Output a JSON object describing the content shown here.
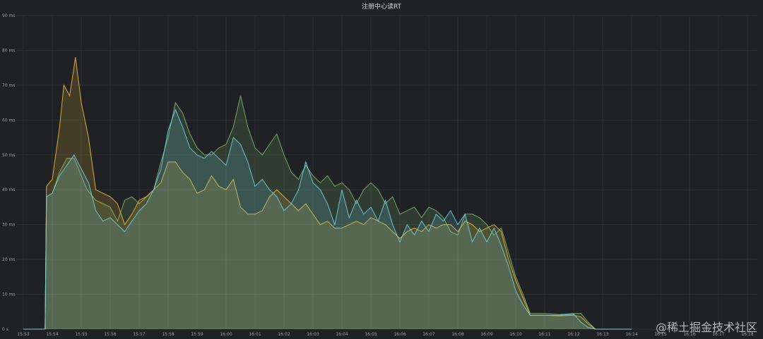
{
  "chart_data": {
    "type": "area",
    "title": "注册中心读RT",
    "xlabel": "",
    "ylabel": "",
    "ylim": [
      0,
      90
    ],
    "yticks": [
      "0 s",
      "10 ms",
      "20 ms",
      "30 ms",
      "40 ms",
      "50 ms",
      "60 ms",
      "70 ms",
      "80 ms",
      "90 ms"
    ],
    "xticks": [
      "15:53",
      "15:54",
      "15:55",
      "15:56",
      "15:57",
      "15:58",
      "15:59",
      "16:00",
      "16:01",
      "16:02",
      "16:03",
      "16:04",
      "16:05",
      "16:06",
      "16:07",
      "16:08",
      "16:09",
      "16:10",
      "16:11",
      "16:12",
      "16:13",
      "16:14",
      "16:15",
      "16:16",
      "16:17",
      "16:18"
    ],
    "grid": true,
    "legend": "none",
    "series": [
      {
        "color": "#7eb26d",
        "points": [
          [
            0,
            0
          ],
          [
            0.75,
            0
          ],
          [
            0.8,
            38
          ],
          [
            1,
            39
          ],
          [
            1.25,
            45
          ],
          [
            1.5,
            49
          ],
          [
            1.75,
            49
          ],
          [
            2,
            44
          ],
          [
            2.2,
            40
          ],
          [
            2.5,
            37
          ],
          [
            2.75,
            36
          ],
          [
            3,
            35
          ],
          [
            3.25,
            31
          ],
          [
            3.5,
            37
          ],
          [
            3.75,
            38
          ],
          [
            4,
            36
          ],
          [
            4.25,
            38
          ],
          [
            4.5,
            40
          ],
          [
            4.75,
            48
          ],
          [
            5,
            55
          ],
          [
            5.25,
            65
          ],
          [
            5.5,
            62
          ],
          [
            5.75,
            56
          ],
          [
            6,
            52
          ],
          [
            6.25,
            50
          ],
          [
            6.5,
            50
          ],
          [
            6.75,
            52
          ],
          [
            7,
            53
          ],
          [
            7.25,
            58
          ],
          [
            7.5,
            67
          ],
          [
            7.75,
            58
          ],
          [
            8,
            52
          ],
          [
            8.25,
            50
          ],
          [
            8.5,
            53
          ],
          [
            8.75,
            56
          ],
          [
            9,
            50
          ],
          [
            9.25,
            45
          ],
          [
            9.5,
            43
          ],
          [
            9.75,
            47
          ],
          [
            10,
            44
          ],
          [
            10.25,
            42
          ],
          [
            10.5,
            44
          ],
          [
            10.75,
            41
          ],
          [
            11,
            42
          ],
          [
            11.25,
            40
          ],
          [
            11.5,
            36
          ],
          [
            11.75,
            40
          ],
          [
            12,
            42
          ],
          [
            12.25,
            40
          ],
          [
            12.5,
            36
          ],
          [
            12.75,
            38
          ],
          [
            13,
            33
          ],
          [
            13.25,
            34
          ],
          [
            13.5,
            35
          ],
          [
            13.75,
            32
          ],
          [
            14,
            35
          ],
          [
            14.25,
            34
          ],
          [
            14.5,
            32
          ],
          [
            14.75,
            28
          ],
          [
            15,
            27
          ],
          [
            15.25,
            33
          ],
          [
            15.5,
            33
          ],
          [
            15.75,
            32
          ],
          [
            16,
            30
          ],
          [
            16.25,
            27
          ],
          [
            16.5,
            29
          ],
          [
            16.75,
            22
          ],
          [
            17,
            15
          ],
          [
            17.25,
            10
          ],
          [
            17.5,
            4.5
          ],
          [
            18,
            4.5
          ],
          [
            18.5,
            4.2
          ],
          [
            19,
            4.5
          ],
          [
            19.25,
            4.5
          ],
          [
            19.5,
            2
          ],
          [
            19.75,
            0
          ],
          [
            21,
            0
          ]
        ]
      },
      {
        "color": "#eab839",
        "points": [
          [
            0,
            0
          ],
          [
            0.75,
            0
          ],
          [
            0.8,
            41
          ],
          [
            1,
            43
          ],
          [
            1.25,
            58
          ],
          [
            1.4,
            70
          ],
          [
            1.6,
            67
          ],
          [
            1.8,
            78
          ],
          [
            2,
            65
          ],
          [
            2.25,
            55
          ],
          [
            2.5,
            40
          ],
          [
            2.75,
            39
          ],
          [
            3,
            38
          ],
          [
            3.25,
            36
          ],
          [
            3.5,
            30
          ],
          [
            3.75,
            33
          ],
          [
            4,
            37
          ],
          [
            4.25,
            38
          ],
          [
            4.5,
            40
          ],
          [
            4.75,
            42
          ],
          [
            5,
            48
          ],
          [
            5.25,
            48
          ],
          [
            5.5,
            45
          ],
          [
            5.75,
            43
          ],
          [
            6,
            39
          ],
          [
            6.25,
            40
          ],
          [
            6.5,
            44
          ],
          [
            6.75,
            41
          ],
          [
            7,
            40
          ],
          [
            7.25,
            43
          ],
          [
            7.5,
            35
          ],
          [
            7.75,
            33
          ],
          [
            8,
            33
          ],
          [
            8.25,
            34
          ],
          [
            8.5,
            38
          ],
          [
            8.75,
            40
          ],
          [
            9,
            38
          ],
          [
            9.25,
            36
          ],
          [
            9.5,
            34
          ],
          [
            9.75,
            36
          ],
          [
            10,
            33
          ],
          [
            10.25,
            30
          ],
          [
            10.5,
            31
          ],
          [
            10.75,
            29
          ],
          [
            11,
            29
          ],
          [
            11.25,
            30
          ],
          [
            11.5,
            31
          ],
          [
            11.75,
            30
          ],
          [
            12,
            32
          ],
          [
            12.25,
            31
          ],
          [
            12.5,
            30
          ],
          [
            12.75,
            28
          ],
          [
            13,
            26
          ],
          [
            13.25,
            28
          ],
          [
            13.5,
            29
          ],
          [
            13.75,
            28
          ],
          [
            14,
            30
          ],
          [
            14.25,
            29
          ],
          [
            14.5,
            30
          ],
          [
            14.75,
            30
          ],
          [
            15,
            28
          ],
          [
            15.25,
            31
          ],
          [
            15.5,
            30
          ],
          [
            15.75,
            28
          ],
          [
            16,
            29
          ],
          [
            16.25,
            30
          ],
          [
            16.5,
            28
          ],
          [
            16.75,
            20
          ],
          [
            17,
            14
          ],
          [
            17.25,
            9
          ],
          [
            17.5,
            4
          ],
          [
            18,
            4
          ],
          [
            18.5,
            3.8
          ],
          [
            19,
            4
          ],
          [
            19.25,
            3.5
          ],
          [
            19.5,
            1.5
          ],
          [
            19.75,
            0
          ],
          [
            21,
            0
          ]
        ]
      },
      {
        "color": "#6ed0e0",
        "points": [
          [
            0,
            0
          ],
          [
            0.75,
            0
          ],
          [
            0.8,
            38
          ],
          [
            1,
            39
          ],
          [
            1.25,
            44
          ],
          [
            1.5,
            47
          ],
          [
            1.75,
            50
          ],
          [
            2,
            46
          ],
          [
            2.25,
            42
          ],
          [
            2.5,
            34
          ],
          [
            2.75,
            31
          ],
          [
            3,
            32
          ],
          [
            3.25,
            30
          ],
          [
            3.5,
            28
          ],
          [
            3.75,
            31
          ],
          [
            4,
            34
          ],
          [
            4.25,
            36
          ],
          [
            4.5,
            40
          ],
          [
            4.75,
            46
          ],
          [
            5,
            57
          ],
          [
            5.25,
            63
          ],
          [
            5.5,
            58
          ],
          [
            5.75,
            52
          ],
          [
            6,
            50
          ],
          [
            6.25,
            49
          ],
          [
            6.5,
            51
          ],
          [
            6.75,
            49
          ],
          [
            7,
            47
          ],
          [
            7.25,
            55
          ],
          [
            7.5,
            53
          ],
          [
            7.75,
            48
          ],
          [
            8,
            41
          ],
          [
            8.25,
            43
          ],
          [
            8.5,
            40
          ],
          [
            8.75,
            38
          ],
          [
            9,
            34
          ],
          [
            9.25,
            36
          ],
          [
            9.5,
            40
          ],
          [
            9.75,
            48
          ],
          [
            10,
            42
          ],
          [
            10.25,
            40
          ],
          [
            10.5,
            36
          ],
          [
            10.75,
            30
          ],
          [
            11,
            40
          ],
          [
            11.25,
            32
          ],
          [
            11.5,
            37
          ],
          [
            11.75,
            33
          ],
          [
            12,
            35
          ],
          [
            12.25,
            31
          ],
          [
            12.5,
            37
          ],
          [
            12.75,
            30
          ],
          [
            13,
            25
          ],
          [
            13.25,
            30
          ],
          [
            13.5,
            27
          ],
          [
            13.75,
            31
          ],
          [
            14,
            28
          ],
          [
            14.25,
            33
          ],
          [
            14.5,
            31
          ],
          [
            14.75,
            34
          ],
          [
            15,
            30
          ],
          [
            15.25,
            33
          ],
          [
            15.5,
            25
          ],
          [
            15.75,
            29
          ],
          [
            16,
            25
          ],
          [
            16.25,
            29
          ],
          [
            16.5,
            24
          ],
          [
            16.75,
            18
          ],
          [
            17,
            11
          ],
          [
            17.25,
            7
          ],
          [
            17.5,
            4
          ],
          [
            18,
            4
          ],
          [
            18.5,
            4
          ],
          [
            19,
            4.3
          ],
          [
            19.25,
            2
          ],
          [
            19.5,
            0.5
          ],
          [
            19.75,
            0
          ],
          [
            21,
            0
          ]
        ]
      }
    ]
  },
  "watermark": "@稀土掘金技术社区"
}
